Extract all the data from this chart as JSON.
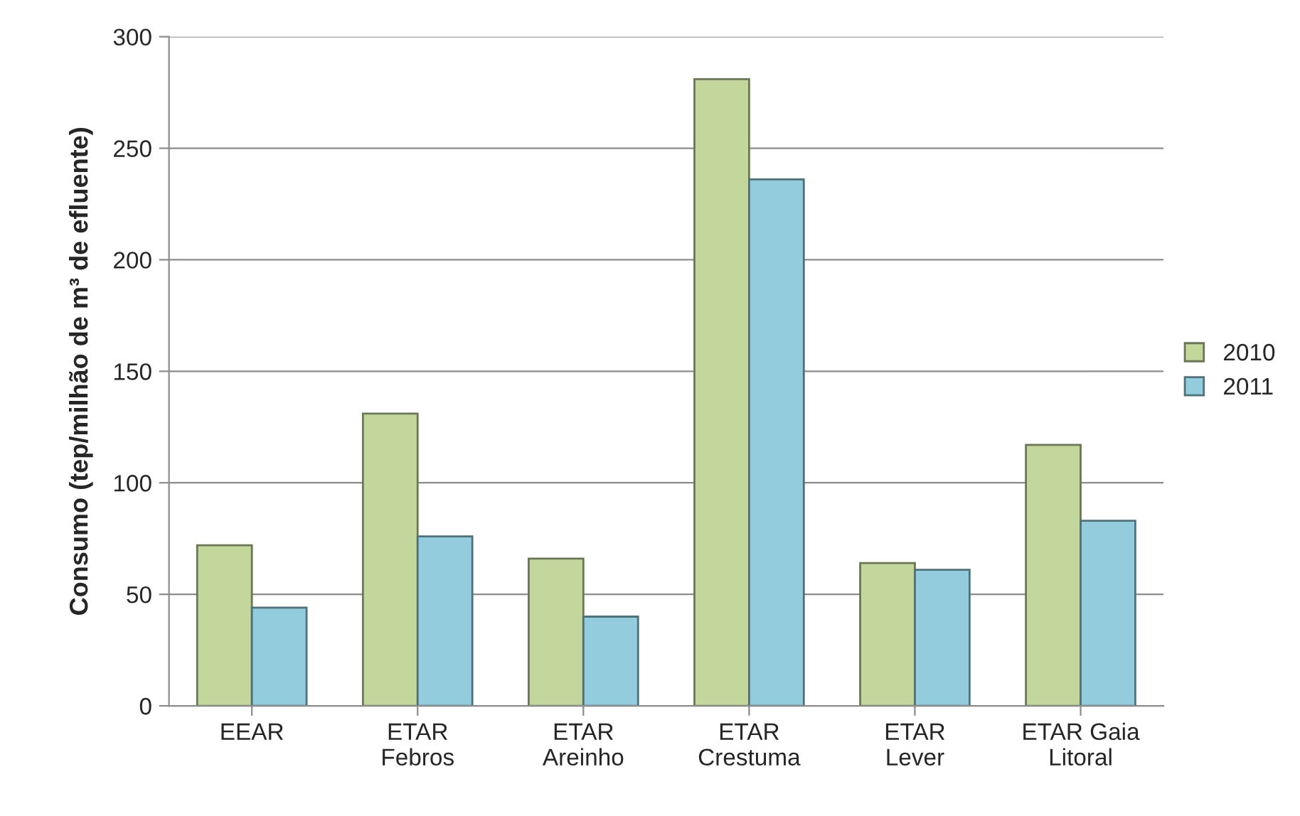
{
  "chart_data": {
    "type": "bar",
    "ylabel": "Consumo (tep/milhão de m³ de efluente)",
    "categories": [
      "EEAR",
      "ETAR\nFebros",
      "ETAR\nAreinho",
      "ETAR\nCrestuma",
      "ETAR\nLever",
      "ETAR Gaia\nLitoral"
    ],
    "series": [
      {
        "name": "2010",
        "color": "#c3d69b",
        "values": [
          72,
          131,
          66,
          281,
          64,
          117
        ]
      },
      {
        "name": "2011",
        "color": "#93cddd",
        "values": [
          44,
          76,
          40,
          236,
          61,
          83
        ]
      }
    ],
    "ylim": [
      0,
      300
    ],
    "yticks": [
      0,
      50,
      100,
      150,
      200,
      250,
      300
    ],
    "grid": "y",
    "legend": "right"
  }
}
